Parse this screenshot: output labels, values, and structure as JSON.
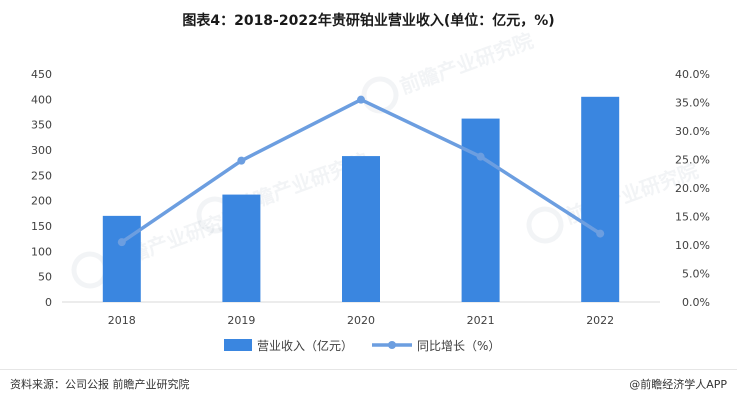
{
  "title": "图表4：2018-2022年贵研铂业营业收入(单位：亿元，%)",
  "source": "资料来源：公司公报 前瞻产业研究院",
  "credit": "@前瞻经济学人APP",
  "watermark_text": "前瞻产业研究院",
  "colors": {
    "bar": "#3a86e0",
    "line": "#6c9ee0",
    "axis": "#d9d9d9",
    "text": "#404040"
  },
  "chart_data": {
    "type": "bar",
    "categories": [
      "2018",
      "2019",
      "2020",
      "2021",
      "2022"
    ],
    "series": [
      {
        "name": "营业收入（亿元）",
        "type": "bar",
        "axis": "left",
        "values": [
          170,
          212,
          288,
          362,
          405
        ]
      },
      {
        "name": "同比增长（%）",
        "type": "line",
        "axis": "right",
        "values": [
          10.5,
          24.8,
          35.5,
          25.5,
          12.0
        ]
      }
    ],
    "y_left": {
      "ylim": [
        0,
        450
      ],
      "ticks": [
        "0",
        "50",
        "100",
        "150",
        "200",
        "250",
        "300",
        "350",
        "400",
        "450"
      ]
    },
    "y_right": {
      "ylim": [
        0,
        40
      ],
      "ticks": [
        "0.0%",
        "5.0%",
        "10.0%",
        "15.0%",
        "20.0%",
        "25.0%",
        "30.0%",
        "35.0%",
        "40.0%"
      ]
    },
    "legend_position": "bottom-center",
    "grid": false
  }
}
